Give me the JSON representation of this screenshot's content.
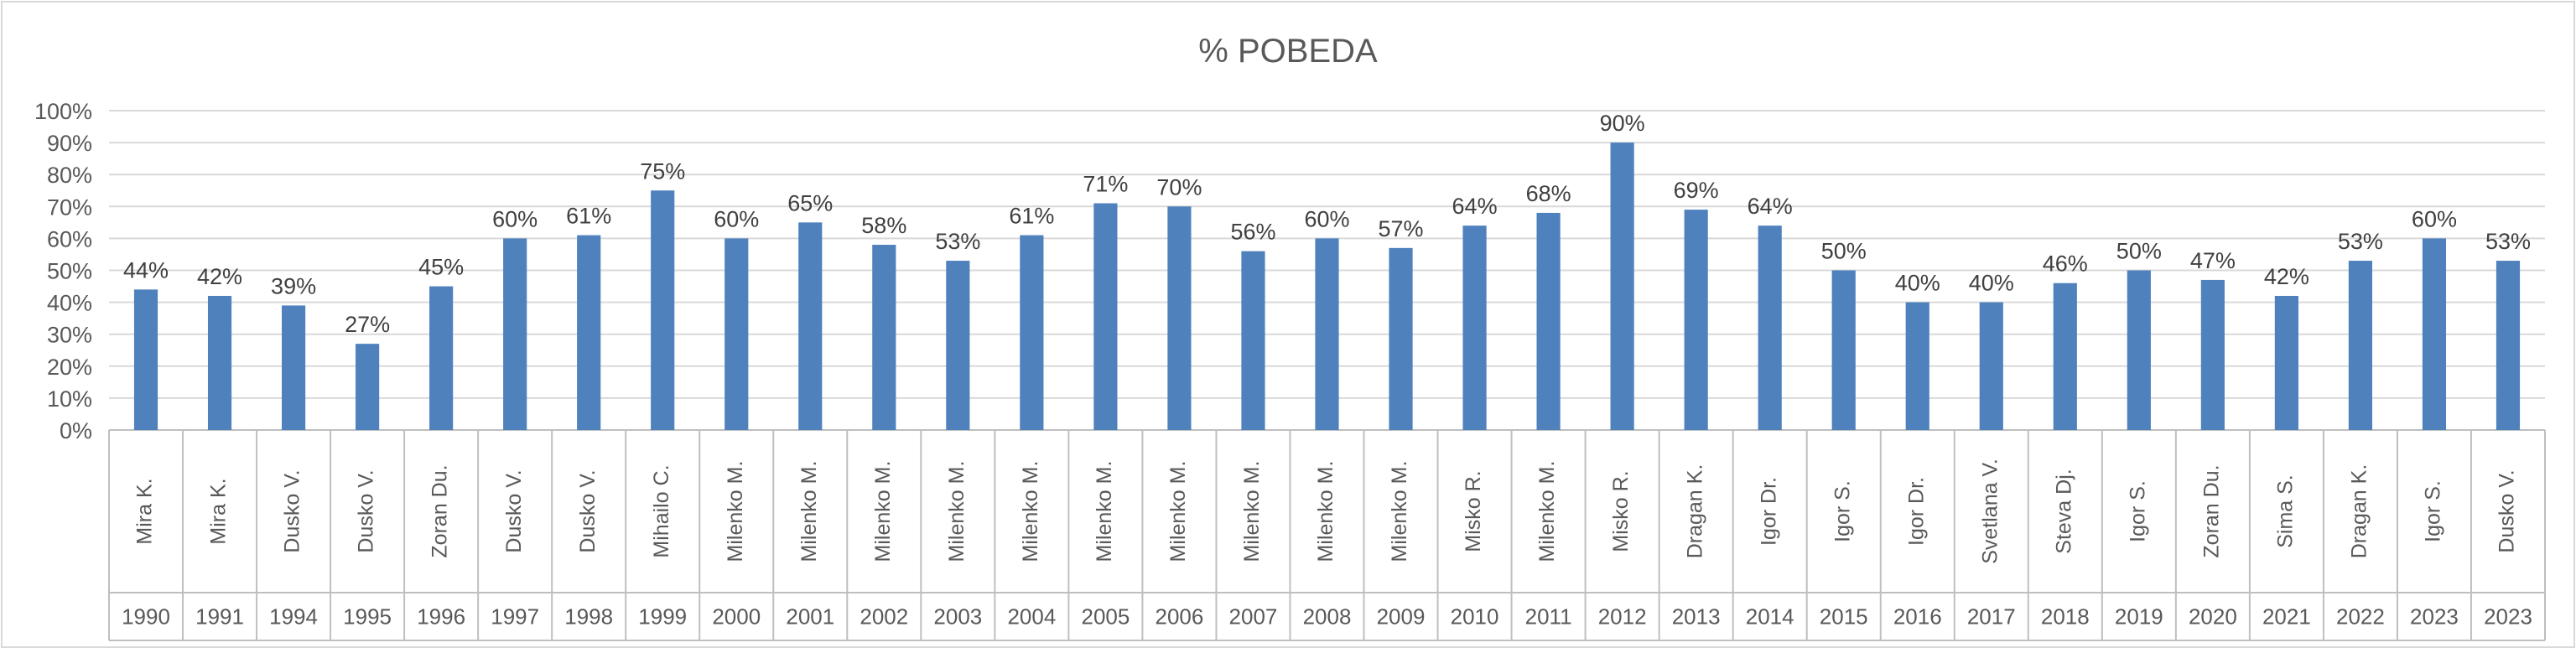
{
  "chart_data": {
    "type": "bar",
    "title": "% POBEDA",
    "ylim": [
      0,
      100
    ],
    "y_ticks": [
      "0%",
      "10%",
      "20%",
      "30%",
      "40%",
      "50%",
      "60%",
      "70%",
      "80%",
      "90%",
      "100%"
    ],
    "grid": true,
    "legend": "none",
    "bar_color": "#4f81bd",
    "categories": [
      {
        "name": "Mira K.",
        "year": "1990"
      },
      {
        "name": "Mira K.",
        "year": "1991"
      },
      {
        "name": "Dusko V.",
        "year": "1994"
      },
      {
        "name": "Dusko V.",
        "year": "1995"
      },
      {
        "name": "Zoran Du.",
        "year": "1996"
      },
      {
        "name": "Dusko V.",
        "year": "1997"
      },
      {
        "name": "Dusko V.",
        "year": "1998"
      },
      {
        "name": "Mihailo C.",
        "year": "1999"
      },
      {
        "name": "Milenko M.",
        "year": "2000"
      },
      {
        "name": "Milenko M.",
        "year": "2001"
      },
      {
        "name": "Milenko M.",
        "year": "2002"
      },
      {
        "name": "Milenko M.",
        "year": "2003"
      },
      {
        "name": "Milenko M.",
        "year": "2004"
      },
      {
        "name": "Milenko M.",
        "year": "2005"
      },
      {
        "name": "Milenko M.",
        "year": "2006"
      },
      {
        "name": "Milenko M.",
        "year": "2007"
      },
      {
        "name": "Milenko M.",
        "year": "2008"
      },
      {
        "name": "Milenko M.",
        "year": "2009"
      },
      {
        "name": "Misko R.",
        "year": "2010"
      },
      {
        "name": "Milenko M.",
        "year": "2011"
      },
      {
        "name": "Misko R.",
        "year": "2012"
      },
      {
        "name": "Dragan K.",
        "year": "2013"
      },
      {
        "name": "Igor Dr.",
        "year": "2014"
      },
      {
        "name": "Igor S.",
        "year": "2015"
      },
      {
        "name": "Igor Dr.",
        "year": "2016"
      },
      {
        "name": "Svetlana V.",
        "year": "2017"
      },
      {
        "name": "Steva Dj.",
        "year": "2018"
      },
      {
        "name": "Igor S.",
        "year": "2019"
      },
      {
        "name": "Zoran Du.",
        "year": "2020"
      },
      {
        "name": "Sima S.",
        "year": "2021"
      },
      {
        "name": "Dragan K.",
        "year": "2022"
      },
      {
        "name": "Igor S.",
        "year": "2023"
      },
      {
        "name": "Dusko V.",
        "year": "2023"
      }
    ],
    "values": [
      44,
      42,
      39,
      27,
      45,
      60,
      61,
      75,
      60,
      65,
      58,
      53,
      61,
      71,
      70,
      56,
      60,
      57,
      64,
      68,
      90,
      69,
      64,
      50,
      40,
      40,
      46,
      50,
      47,
      42,
      53,
      60,
      53
    ],
    "data_labels": [
      "44%",
      "42%",
      "39%",
      "27%",
      "45%",
      "60%",
      "61%",
      "75%",
      "60%",
      "65%",
      "58%",
      "53%",
      "61%",
      "71%",
      "70%",
      "56%",
      "60%",
      "57%",
      "64%",
      "68%",
      "90%",
      "69%",
      "64%",
      "50%",
      "40%",
      "40%",
      "46%",
      "50%",
      "47%",
      "42%",
      "53%",
      "60%",
      "53%"
    ]
  }
}
